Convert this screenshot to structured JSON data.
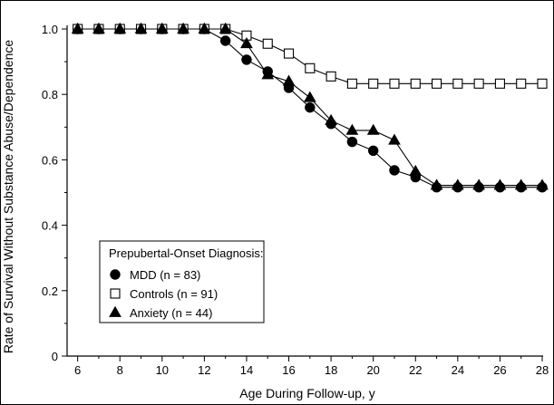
{
  "chart_data": {
    "type": "line",
    "title": "",
    "xlabel": "Age During Follow-up, y",
    "ylabel": "Rate of Survival Without Substance Abuse/Dependence",
    "xlim": [
      5.5,
      28
    ],
    "ylim": [
      0,
      1.0
    ],
    "x_ticks": [
      6,
      8,
      10,
      12,
      14,
      16,
      18,
      20,
      22,
      24,
      26,
      28
    ],
    "y_ticks": [
      0,
      0.2,
      0.4,
      0.6,
      0.8,
      1.0
    ],
    "y_tick_labels": [
      "0",
      "0.2",
      "0.4",
      "0.6",
      "0.8",
      "1.0"
    ],
    "grid": false,
    "legend": {
      "title": "Prepubertal-Onset Diagnosis:",
      "position": "bottom-left"
    },
    "series": [
      {
        "name": "MDD (n = 83)",
        "marker": "filled-circle",
        "x": [
          6,
          7,
          8,
          9,
          10,
          11,
          12,
          13,
          14,
          15,
          16,
          17,
          18,
          19,
          20,
          21,
          22,
          23,
          24,
          25,
          26,
          27,
          28
        ],
        "y": [
          1.0,
          1.0,
          1.0,
          1.0,
          1.0,
          1.0,
          1.0,
          0.964,
          0.906,
          0.87,
          0.82,
          0.76,
          0.71,
          0.655,
          0.628,
          0.568,
          0.547,
          0.516,
          0.516,
          0.516,
          0.516,
          0.516,
          0.516
        ]
      },
      {
        "name": "Controls (n = 91)",
        "marker": "open-square",
        "x": [
          6,
          7,
          8,
          9,
          10,
          11,
          12,
          13,
          14,
          15,
          16,
          17,
          18,
          19,
          20,
          21,
          22,
          23,
          24,
          25,
          26,
          27,
          28
        ],
        "y": [
          1.0,
          1.0,
          1.0,
          1.0,
          1.0,
          1.0,
          1.0,
          1.0,
          0.98,
          0.955,
          0.925,
          0.88,
          0.855,
          0.833,
          0.833,
          0.833,
          0.833,
          0.833,
          0.833,
          0.833,
          0.833,
          0.833,
          0.833
        ]
      },
      {
        "name": "Anxiety (n = 44)",
        "marker": "filled-triangle",
        "x": [
          6,
          7,
          8,
          9,
          10,
          11,
          12,
          13,
          14,
          15,
          16,
          17,
          18,
          19,
          20,
          21,
          22,
          23,
          24,
          25,
          26,
          27,
          28
        ],
        "y": [
          1.0,
          1.0,
          1.0,
          1.0,
          1.0,
          1.0,
          1.0,
          1.0,
          0.955,
          0.86,
          0.84,
          0.79,
          0.72,
          0.69,
          0.69,
          0.66,
          0.565,
          0.522,
          0.522,
          0.522,
          0.522,
          0.522,
          0.522
        ]
      }
    ]
  }
}
